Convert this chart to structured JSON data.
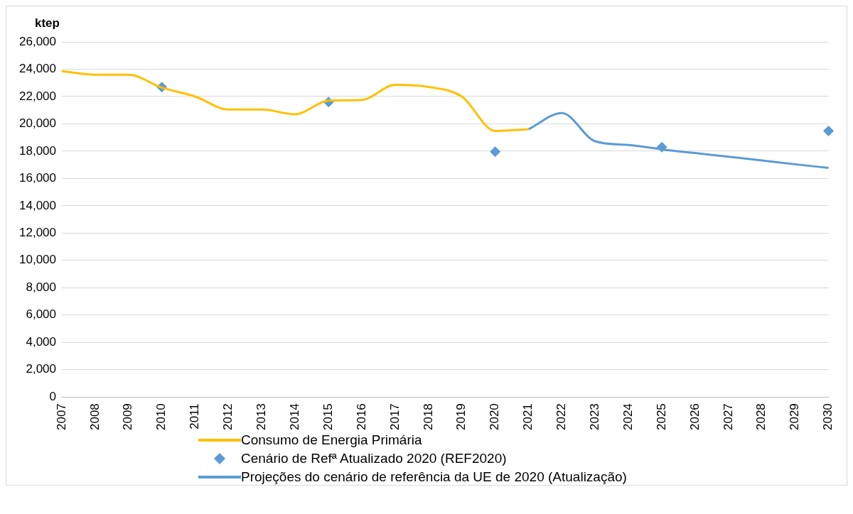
{
  "chart_data": {
    "type": "line",
    "ylabel": "ktep",
    "categories": [
      "2007",
      "2008",
      "2009",
      "2010",
      "2011",
      "2012",
      "2013",
      "2014",
      "2015",
      "2016",
      "2017",
      "2018",
      "2019",
      "2020",
      "2021",
      "2022",
      "2023",
      "2024",
      "2025",
      "2026",
      "2027",
      "2028",
      "2029",
      "2030"
    ],
    "series": [
      {
        "name": "Consumo de Energia Primária",
        "marker": "none",
        "color": "#ffc000",
        "values": [
          23850,
          23600,
          23600,
          22650,
          22000,
          21050,
          21050,
          20700,
          21700,
          21750,
          22850,
          22700,
          22000,
          19480,
          19600,
          null,
          null,
          null,
          null,
          null,
          null,
          null,
          null,
          null
        ]
      },
      {
        "name": "Cenário de Refª Atualizado 2020 (REF2020)",
        "type": "scatter",
        "marker": "diamond",
        "color": "#5b9bd5",
        "values": [
          null,
          null,
          null,
          22690,
          null,
          null,
          null,
          null,
          21600,
          null,
          null,
          null,
          null,
          17960,
          null,
          null,
          null,
          null,
          18290,
          null,
          null,
          null,
          null,
          19480
        ]
      },
      {
        "name": "Projeções do cenário de referência da UE de 2020 (Atualização)",
        "marker": "none",
        "color": "#5b9bd5",
        "values": [
          null,
          null,
          null,
          null,
          null,
          null,
          null,
          null,
          null,
          null,
          null,
          null,
          null,
          null,
          19600,
          20790,
          18720,
          18450,
          18130,
          17860,
          17590,
          17320,
          17040,
          16770
        ]
      }
    ],
    "ylim": [
      0,
      26000
    ],
    "yticks": [
      {
        "value": 0,
        "label": "0"
      },
      {
        "value": 2000,
        "label": "2,000"
      },
      {
        "value": 4000,
        "label": "4,000"
      },
      {
        "value": 6000,
        "label": "6,000"
      },
      {
        "value": 8000,
        "label": "8,000"
      },
      {
        "value": 10000,
        "label": "10,000"
      },
      {
        "value": 12000,
        "label": "12,000"
      },
      {
        "value": 14000,
        "label": "14,000"
      },
      {
        "value": 16000,
        "label": "16,000"
      },
      {
        "value": 18000,
        "label": "18,000"
      },
      {
        "value": 20000,
        "label": "20,000"
      },
      {
        "value": 22000,
        "label": "22,000"
      },
      {
        "value": 24000,
        "label": "24,000"
      },
      {
        "value": 26000,
        "label": "26,000"
      }
    ],
    "grid": "y",
    "legend": "bottom"
  }
}
